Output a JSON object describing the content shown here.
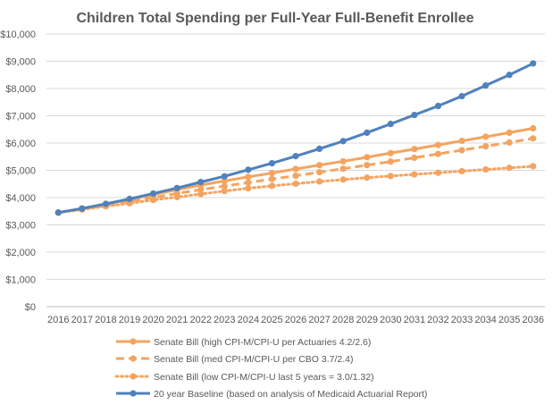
{
  "chart_data": {
    "type": "line",
    "title": "Children Total Spending per Full-Year Full-Benefit Enrollee",
    "xlabel": "",
    "ylabel": "",
    "ylim": [
      0,
      10000
    ],
    "y_ticks": [
      "$0",
      "$1,000",
      "$2,000",
      "$3,000",
      "$4,000",
      "$5,000",
      "$6,000",
      "$7,000",
      "$8,000",
      "$9,000",
      "$10,000"
    ],
    "y_tick_values": [
      0,
      1000,
      2000,
      3000,
      4000,
      5000,
      6000,
      7000,
      8000,
      9000,
      10000
    ],
    "grid": true,
    "legend_position": "bottom",
    "categories": [
      "2016",
      "2017",
      "2018",
      "2019",
      "2020",
      "2021",
      "2022",
      "2023",
      "2024",
      "2025",
      "2026",
      "2027",
      "2028",
      "2029",
      "2030",
      "2031",
      "2032",
      "2033",
      "2034",
      "2035",
      "2036"
    ],
    "series": [
      {
        "name": "Senate Bill (high CPI-M/CPI-U per Actuaries 4.2/2.6)",
        "color": "#f4a460",
        "line_style": "solid",
        "values": [
          3450,
          3600,
          3760,
          3930,
          4110,
          4290,
          4460,
          4610,
          4760,
          4900,
          5050,
          5190,
          5330,
          5480,
          5630,
          5780,
          5930,
          6080,
          6230,
          6380,
          6540
        ]
      },
      {
        "name": "Senate Bill (med CPI-M/CPI-U per CBO 3.7/2.4)",
        "color": "#f4a460",
        "line_style": "dashed",
        "values": [
          3450,
          3580,
          3720,
          3860,
          4000,
          4150,
          4290,
          4420,
          4550,
          4680,
          4800,
          4930,
          5060,
          5190,
          5320,
          5460,
          5600,
          5740,
          5880,
          6020,
          6170
        ]
      },
      {
        "name": "Senate Bill (low CPI-M/CPI-U last 5 years = 3.0/1.32)",
        "color": "#f4a460",
        "line_style": "dotted",
        "values": [
          3450,
          3560,
          3680,
          3790,
          3910,
          4020,
          4130,
          4240,
          4340,
          4430,
          4510,
          4590,
          4660,
          4730,
          4790,
          4850,
          4910,
          4970,
          5030,
          5090,
          5150
        ]
      },
      {
        "name": "20 year Baseline (based on analysis of Medicaid Actuarial Report)",
        "color": "#4f81bd",
        "line_style": "solid",
        "values": [
          3450,
          3600,
          3770,
          3950,
          4150,
          4350,
          4570,
          4780,
          5020,
          5260,
          5520,
          5790,
          6070,
          6380,
          6700,
          7030,
          7360,
          7720,
          8110,
          8500,
          8920
        ]
      }
    ]
  }
}
